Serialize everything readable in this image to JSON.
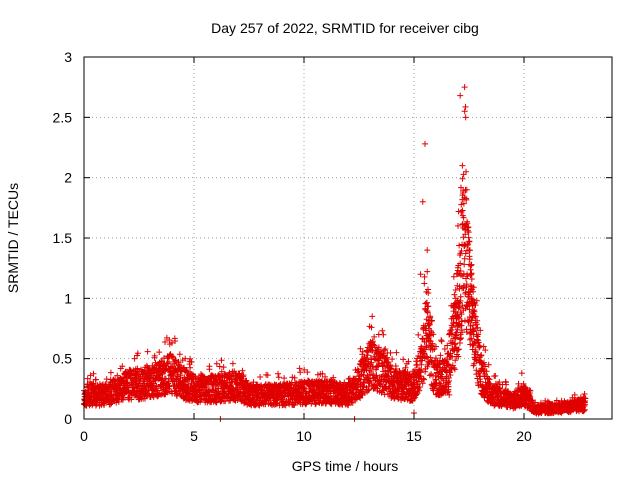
{
  "chart_data": {
    "type": "scatter",
    "title": "Day 257 of 2022, SRMTID for receiver cibg",
    "xlabel": "GPS time / hours",
    "ylabel": "SRMTID / TECUs",
    "xlim": [
      0,
      24
    ],
    "ylim": [
      0,
      3
    ],
    "xticks": [
      0,
      5,
      10,
      15,
      20
    ],
    "yticks": [
      0,
      0.5,
      1,
      1.5,
      2,
      2.5,
      3
    ],
    "xtick_labels": [
      "0",
      "5",
      "10",
      "15",
      "20"
    ],
    "ytick_labels": [
      "0",
      "0.5",
      "1",
      "1.5",
      "2",
      "2.5",
      "3"
    ],
    "grid": true,
    "marker": "+",
    "color": "#e00000",
    "series": [
      {
        "name": "SRMTID",
        "profile": [
          [
            0.0,
            0.2
          ],
          [
            1.0,
            0.2
          ],
          [
            2.0,
            0.28
          ],
          [
            3.0,
            0.3
          ],
          [
            3.5,
            0.35
          ],
          [
            4.0,
            0.38
          ],
          [
            4.5,
            0.3
          ],
          [
            5.0,
            0.25
          ],
          [
            6.0,
            0.25
          ],
          [
            7.0,
            0.28
          ],
          [
            7.5,
            0.2
          ],
          [
            9.0,
            0.2
          ],
          [
            10.0,
            0.22
          ],
          [
            11.0,
            0.22
          ],
          [
            12.0,
            0.2
          ],
          [
            12.5,
            0.3
          ],
          [
            13.0,
            0.45
          ],
          [
            13.5,
            0.4
          ],
          [
            14.0,
            0.3
          ],
          [
            15.0,
            0.25
          ],
          [
            15.4,
            0.5
          ],
          [
            15.6,
            0.8
          ],
          [
            15.9,
            0.35
          ],
          [
            16.5,
            0.35
          ],
          [
            17.0,
            0.9
          ],
          [
            17.3,
            1.5
          ],
          [
            17.6,
            0.9
          ],
          [
            18.0,
            0.4
          ],
          [
            18.5,
            0.2
          ],
          [
            19.5,
            0.15
          ],
          [
            20.0,
            0.2
          ],
          [
            20.5,
            0.08
          ],
          [
            21.0,
            0.08
          ],
          [
            22.0,
            0.1
          ],
          [
            22.8,
            0.12
          ]
        ],
        "points": [
          [
            0.2,
            0.22
          ],
          [
            0.6,
            0.18
          ],
          [
            1.1,
            0.25
          ],
          [
            1.6,
            0.2
          ],
          [
            2.3,
            0.5
          ],
          [
            2.8,
            0.35
          ],
          [
            3.2,
            0.4
          ],
          [
            3.9,
            0.62
          ],
          [
            4.3,
            0.45
          ],
          [
            4.6,
            0.5
          ],
          [
            5.4,
            0.28
          ],
          [
            6.2,
            0.0
          ],
          [
            6.6,
            0.3
          ],
          [
            7.2,
            0.4
          ],
          [
            7.9,
            0.18
          ],
          [
            8.5,
            0.22
          ],
          [
            9.3,
            0.25
          ],
          [
            9.8,
            0.42
          ],
          [
            10.5,
            0.3
          ],
          [
            11.2,
            0.25
          ],
          [
            11.8,
            0.28
          ],
          [
            12.3,
            0.0
          ],
          [
            12.8,
            0.48
          ],
          [
            13.1,
            0.85
          ],
          [
            13.4,
            0.7
          ],
          [
            13.7,
            0.5
          ],
          [
            14.2,
            0.55
          ],
          [
            14.6,
            0.35
          ],
          [
            15.0,
            0.05
          ],
          [
            15.3,
            1.2
          ],
          [
            15.4,
            1.8
          ],
          [
            15.5,
            2.28
          ],
          [
            15.6,
            1.4
          ],
          [
            15.7,
            0.7
          ],
          [
            16.0,
            0.6
          ],
          [
            16.3,
            0.4
          ],
          [
            16.6,
            0.2
          ],
          [
            16.9,
            1.0
          ],
          [
            17.0,
            1.6
          ],
          [
            17.1,
            2.68
          ],
          [
            17.2,
            2.1
          ],
          [
            17.3,
            2.75
          ],
          [
            17.35,
            2.5
          ],
          [
            17.4,
            1.9
          ],
          [
            17.5,
            1.4
          ],
          [
            17.6,
            1.2
          ],
          [
            17.8,
            0.8
          ],
          [
            18.0,
            0.6
          ],
          [
            18.2,
            0.4
          ],
          [
            18.8,
            0.25
          ],
          [
            19.5,
            0.15
          ],
          [
            19.9,
            0.38
          ],
          [
            20.3,
            0.1
          ],
          [
            20.8,
            0.05
          ],
          [
            21.5,
            0.12
          ],
          [
            22.2,
            0.13
          ],
          [
            22.7,
            0.18
          ]
        ]
      }
    ]
  }
}
